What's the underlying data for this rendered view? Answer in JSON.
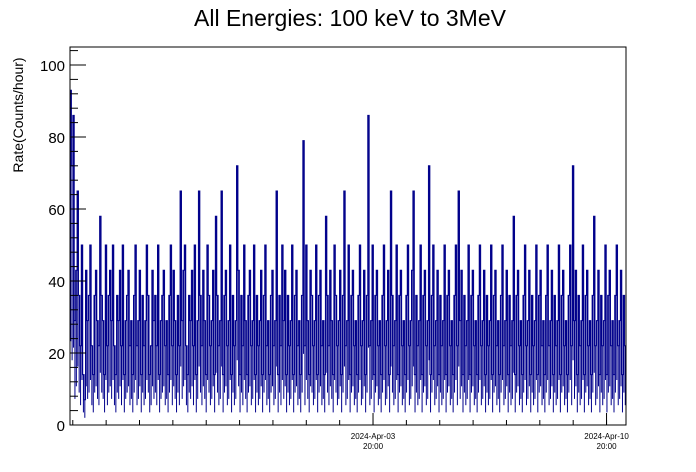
{
  "chart_data": {
    "type": "line",
    "title": "All Energies:  100 keV to 3MeV",
    "xlabel": "",
    "ylabel": "Rate(Counts/hour)",
    "ylim": [
      0,
      105
    ],
    "y_ticks": [
      0,
      20,
      40,
      60,
      80,
      100
    ],
    "x_ticks": [
      {
        "date": "2024-Apr-03",
        "time": "20:00"
      },
      {
        "date": "2024-Apr-10",
        "time": "20:00"
      }
    ],
    "x_range_hours": [
      -386,
      14
    ],
    "grid": false,
    "legend": "none",
    "line_color": "#00008b",
    "series": [
      {
        "x_step_hours": 1,
        "values": [
          93,
          72,
          86,
          29,
          43,
          65,
          36,
          22,
          50,
          14,
          7,
          43,
          29,
          36,
          50,
          22,
          14,
          36,
          43,
          29,
          22,
          58,
          36,
          29,
          14,
          50,
          22,
          36,
          43,
          29,
          50,
          22,
          14,
          36,
          29,
          43,
          22,
          50,
          14,
          29,
          36,
          43,
          22,
          29,
          14,
          36,
          50,
          22,
          29,
          43,
          14,
          36,
          22,
          29,
          50,
          36,
          14,
          22,
          43,
          29,
          36,
          22,
          50,
          14,
          29,
          36,
          43,
          22,
          29,
          14,
          36,
          50,
          22,
          43,
          29,
          14,
          36,
          22,
          65,
          29,
          43,
          50,
          22,
          14,
          36,
          29,
          43,
          22,
          50,
          14,
          29,
          65,
          36,
          22,
          43,
          29,
          14,
          50,
          36,
          22,
          29,
          43,
          14,
          58,
          36,
          22,
          29,
          65,
          14,
          36,
          43,
          22,
          29,
          50,
          14,
          36,
          22,
          29,
          72,
          43,
          14,
          36,
          22,
          50,
          29,
          14,
          36,
          43,
          22,
          29,
          50,
          14,
          36,
          22,
          29,
          43,
          14,
          36,
          50,
          22,
          29,
          14,
          36,
          43,
          22,
          29,
          65,
          14,
          36,
          22,
          50,
          29,
          43,
          14,
          36,
          22,
          29,
          50,
          14,
          36,
          43,
          22,
          29,
          14,
          36,
          79,
          22,
          50,
          29,
          14,
          43,
          36,
          22,
          29,
          50,
          14,
          36,
          43,
          22,
          29,
          14,
          58,
          36,
          22,
          43,
          29,
          14,
          50,
          36,
          22,
          29,
          43,
          14,
          36,
          65,
          22,
          29,
          50,
          14,
          36,
          43,
          22,
          29,
          14,
          36,
          50,
          22,
          29,
          43,
          14,
          36,
          86,
          22,
          29,
          50,
          14,
          36,
          43,
          22,
          29,
          14,
          36,
          50,
          22,
          29,
          43,
          14,
          65,
          36,
          22,
          29,
          50,
          14,
          36,
          43,
          22,
          29,
          14,
          36,
          50,
          22,
          29,
          43,
          65,
          14,
          36,
          22,
          29,
          50,
          14,
          36,
          43,
          22,
          29,
          72,
          14,
          36,
          50,
          22,
          29,
          43,
          14,
          36,
          22,
          29,
          50,
          14,
          36,
          43,
          22,
          29,
          14,
          36,
          50,
          22,
          65,
          29,
          43,
          14,
          36,
          22,
          29,
          50,
          14,
          36,
          43,
          22,
          29,
          14,
          36,
          50,
          22,
          29,
          43,
          14,
          36,
          22,
          29,
          50,
          14,
          36,
          43,
          22,
          29,
          14,
          36,
          50,
          22,
          29,
          43,
          14,
          36,
          22,
          29,
          58,
          14,
          36,
          43,
          22,
          29,
          14,
          36,
          50,
          22,
          29,
          43,
          14,
          36,
          22,
          29,
          50,
          14,
          36,
          43,
          22,
          29,
          14,
          36,
          50,
          22,
          29,
          43,
          14,
          36,
          22,
          29,
          50,
          14,
          36,
          43,
          22,
          29,
          14,
          36,
          50,
          22,
          72,
          29,
          43,
          14,
          36,
          22,
          29,
          50,
          14,
          36,
          43,
          22,
          29,
          14,
          36,
          58,
          22,
          29,
          43,
          14,
          36,
          22,
          29,
          50,
          14,
          36,
          43,
          22,
          29,
          14,
          36,
          50,
          22,
          29,
          43,
          14,
          36,
          22
        ]
      }
    ]
  }
}
